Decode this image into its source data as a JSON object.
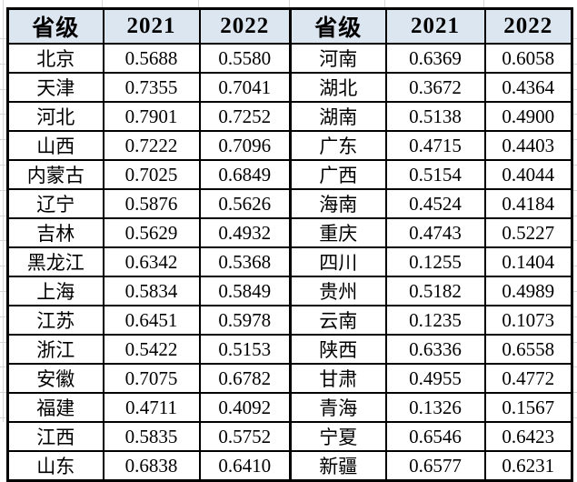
{
  "colors": {
    "header_bg": "#dce6f1",
    "border": "#000000",
    "gridline": "#d6d6d6",
    "text": "#000000"
  },
  "chart_data": {
    "type": "table",
    "title": "",
    "layout": {
      "two_column_groups": true,
      "rows_per_group": 15,
      "header_fill": "#dce6f1",
      "grid": "on"
    },
    "groups": [
      {
        "header": [
          "省级",
          "2021",
          "2022"
        ],
        "rows": [
          [
            "北京",
            "0.5688",
            "0.5580"
          ],
          [
            "天津",
            "0.7355",
            "0.7041"
          ],
          [
            "河北",
            "0.7901",
            "0.7252"
          ],
          [
            "山西",
            "0.7222",
            "0.7096"
          ],
          [
            "内蒙古",
            "0.7025",
            "0.6849"
          ],
          [
            "辽宁",
            "0.5876",
            "0.5626"
          ],
          [
            "吉林",
            "0.5629",
            "0.4932"
          ],
          [
            "黑龙江",
            "0.6342",
            "0.5368"
          ],
          [
            "上海",
            "0.5834",
            "0.5849"
          ],
          [
            "江苏",
            "0.6451",
            "0.5978"
          ],
          [
            "浙江",
            "0.5422",
            "0.5153"
          ],
          [
            "安徽",
            "0.7075",
            "0.6782"
          ],
          [
            "福建",
            "0.4711",
            "0.4092"
          ],
          [
            "江西",
            "0.5835",
            "0.5752"
          ],
          [
            "山东",
            "0.6838",
            "0.6410"
          ]
        ]
      },
      {
        "header": [
          "省级",
          "2021",
          "2022"
        ],
        "rows": [
          [
            "河南",
            "0.6369",
            "0.6058"
          ],
          [
            "湖北",
            "0.3672",
            "0.4364"
          ],
          [
            "湖南",
            "0.5138",
            "0.4900"
          ],
          [
            "广东",
            "0.4715",
            "0.4403"
          ],
          [
            "广西",
            "0.5154",
            "0.4044"
          ],
          [
            "海南",
            "0.4524",
            "0.4184"
          ],
          [
            "重庆",
            "0.4743",
            "0.5227"
          ],
          [
            "四川",
            "0.1255",
            "0.1404"
          ],
          [
            "贵州",
            "0.5182",
            "0.4989"
          ],
          [
            "云南",
            "0.1235",
            "0.1073"
          ],
          [
            "陕西",
            "0.6336",
            "0.6558"
          ],
          [
            "甘肃",
            "0.4955",
            "0.4772"
          ],
          [
            "青海",
            "0.1326",
            "0.1567"
          ],
          [
            "宁夏",
            "0.6546",
            "0.6423"
          ],
          [
            "新疆",
            "0.6577",
            "0.6231"
          ]
        ]
      }
    ]
  }
}
